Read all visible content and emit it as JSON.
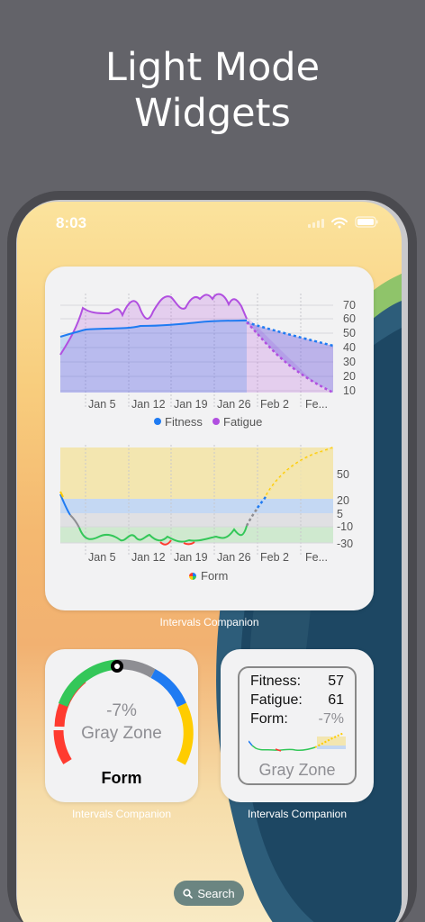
{
  "headline": {
    "line1": "Light Mode",
    "line2": "Widgets"
  },
  "status_bar": {
    "time": "8:03"
  },
  "fitness_chart": {
    "y_ticks": [
      "70",
      "60",
      "50",
      "40",
      "30",
      "20",
      "10"
    ],
    "x_ticks": [
      "Jan 5",
      "Jan 12",
      "Jan 19",
      "Jan 26",
      "Feb 2",
      "Fe..."
    ],
    "legend": [
      {
        "label": "Fitness",
        "color": "#1f7bf2"
      },
      {
        "label": "Fatigue",
        "color": "#b14fe0"
      }
    ]
  },
  "form_chart": {
    "y_ticks": [
      "50",
      "20",
      "5",
      "-10",
      "-30"
    ],
    "x_ticks": [
      "Jan 5",
      "Jan 12",
      "Jan 19",
      "Jan 26",
      "Feb 2",
      "Fe..."
    ],
    "legend_label": "Form"
  },
  "gauge_widget": {
    "percent": "-7%",
    "zone": "Gray Zone",
    "title": "Form"
  },
  "stats_widget": {
    "fitness_label": "Fitness:",
    "fitness_value": "57",
    "fatigue_label": "Fatigue:",
    "fatigue_value": "61",
    "form_label": "Form:",
    "form_value": "-7%",
    "zone": "Gray Zone"
  },
  "widget_labels": {
    "large": "Intervals Companion",
    "small1": "Intervals Companion",
    "small2": "Intervals Companion"
  },
  "search": {
    "label": "Search",
    "icon": "search-icon"
  },
  "colors": {
    "fitness": "#1f7bf2",
    "fatigue": "#b14fe0",
    "green": "#34c759",
    "gray": "#8e8e93",
    "yellow": "#ffcc00",
    "red": "#ff3b30",
    "blue": "#1f7bf2"
  }
}
